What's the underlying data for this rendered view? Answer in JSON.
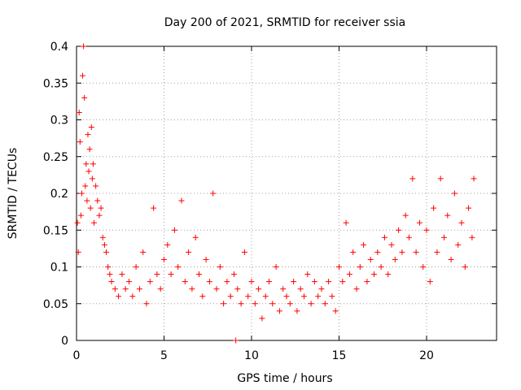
{
  "chart_data": {
    "type": "scatter",
    "title": "Day 200 of 2021, SRMTID for receiver ssia",
    "xlabel": "GPS time / hours",
    "ylabel": "SRMTID / TECUs",
    "xlim": [
      0,
      24
    ],
    "ylim": [
      0,
      0.4
    ],
    "x_ticks": [
      0,
      5,
      10,
      15,
      20
    ],
    "y_ticks": [
      0,
      0.05,
      0.1,
      0.15,
      0.2,
      0.25,
      0.3,
      0.35,
      0.4
    ],
    "y_tick_labels": [
      "0",
      "0.05",
      "0.1",
      "0.15",
      "0.2",
      "0.25",
      "0.3",
      "0.35",
      "0.4"
    ],
    "grid": true,
    "marker": "+",
    "color": "#ff0000",
    "series": [
      {
        "name": "ssia",
        "points": [
          [
            0.05,
            0.16
          ],
          [
            0.1,
            0.12
          ],
          [
            0.15,
            0.31
          ],
          [
            0.2,
            0.27
          ],
          [
            0.25,
            0.17
          ],
          [
            0.3,
            0.2
          ],
          [
            0.35,
            0.36
          ],
          [
            0.4,
            0.4
          ],
          [
            0.45,
            0.33
          ],
          [
            0.5,
            0.21
          ],
          [
            0.55,
            0.24
          ],
          [
            0.6,
            0.19
          ],
          [
            0.65,
            0.28
          ],
          [
            0.7,
            0.23
          ],
          [
            0.75,
            0.26
          ],
          [
            0.8,
            0.18
          ],
          [
            0.85,
            0.29
          ],
          [
            0.9,
            0.22
          ],
          [
            0.95,
            0.24
          ],
          [
            1.0,
            0.16
          ],
          [
            1.1,
            0.21
          ],
          [
            1.2,
            0.19
          ],
          [
            1.3,
            0.17
          ],
          [
            1.4,
            0.18
          ],
          [
            1.5,
            0.14
          ],
          [
            1.6,
            0.13
          ],
          [
            1.7,
            0.12
          ],
          [
            1.8,
            0.1
          ],
          [
            1.9,
            0.09
          ],
          [
            2.0,
            0.08
          ],
          [
            2.2,
            0.07
          ],
          [
            2.4,
            0.06
          ],
          [
            2.6,
            0.09
          ],
          [
            2.8,
            0.07
          ],
          [
            3.0,
            0.08
          ],
          [
            3.2,
            0.06
          ],
          [
            3.4,
            0.1
          ],
          [
            3.6,
            0.07
          ],
          [
            3.8,
            0.12
          ],
          [
            4.0,
            0.05
          ],
          [
            4.2,
            0.08
          ],
          [
            4.4,
            0.18
          ],
          [
            4.6,
            0.09
          ],
          [
            4.8,
            0.07
          ],
          [
            5.0,
            0.11
          ],
          [
            5.2,
            0.13
          ],
          [
            5.4,
            0.09
          ],
          [
            5.6,
            0.15
          ],
          [
            5.8,
            0.1
          ],
          [
            6.0,
            0.19
          ],
          [
            6.2,
            0.08
          ],
          [
            6.4,
            0.12
          ],
          [
            6.6,
            0.07
          ],
          [
            6.8,
            0.14
          ],
          [
            7.0,
            0.09
          ],
          [
            7.2,
            0.06
          ],
          [
            7.4,
            0.11
          ],
          [
            7.6,
            0.08
          ],
          [
            7.8,
            0.2
          ],
          [
            8.0,
            0.07
          ],
          [
            8.2,
            0.1
          ],
          [
            8.4,
            0.05
          ],
          [
            8.6,
            0.08
          ],
          [
            8.8,
            0.06
          ],
          [
            9.0,
            0.09
          ],
          [
            9.1,
            0.0
          ],
          [
            9.2,
            0.07
          ],
          [
            9.4,
            0.05
          ],
          [
            9.6,
            0.12
          ],
          [
            9.8,
            0.06
          ],
          [
            10.0,
            0.08
          ],
          [
            10.2,
            0.05
          ],
          [
            10.4,
            0.07
          ],
          [
            10.6,
            0.03
          ],
          [
            10.8,
            0.06
          ],
          [
            11.0,
            0.08
          ],
          [
            11.2,
            0.05
          ],
          [
            11.4,
            0.1
          ],
          [
            11.6,
            0.04
          ],
          [
            11.8,
            0.07
          ],
          [
            12.0,
            0.06
          ],
          [
            12.2,
            0.05
          ],
          [
            12.4,
            0.08
          ],
          [
            12.6,
            0.04
          ],
          [
            12.8,
            0.07
          ],
          [
            13.0,
            0.06
          ],
          [
            13.2,
            0.09
          ],
          [
            13.4,
            0.05
          ],
          [
            13.6,
            0.08
          ],
          [
            13.8,
            0.06
          ],
          [
            14.0,
            0.07
          ],
          [
            14.2,
            0.05
          ],
          [
            14.4,
            0.08
          ],
          [
            14.6,
            0.06
          ],
          [
            14.8,
            0.04
          ],
          [
            15.0,
            0.1
          ],
          [
            15.2,
            0.08
          ],
          [
            15.4,
            0.16
          ],
          [
            15.6,
            0.09
          ],
          [
            15.8,
            0.12
          ],
          [
            16.0,
            0.07
          ],
          [
            16.2,
            0.1
          ],
          [
            16.4,
            0.13
          ],
          [
            16.6,
            0.08
          ],
          [
            16.8,
            0.11
          ],
          [
            17.0,
            0.09
          ],
          [
            17.2,
            0.12
          ],
          [
            17.4,
            0.1
          ],
          [
            17.6,
            0.14
          ],
          [
            17.8,
            0.09
          ],
          [
            18.0,
            0.13
          ],
          [
            18.2,
            0.11
          ],
          [
            18.4,
            0.15
          ],
          [
            18.6,
            0.12
          ],
          [
            18.8,
            0.17
          ],
          [
            19.0,
            0.14
          ],
          [
            19.2,
            0.22
          ],
          [
            19.4,
            0.12
          ],
          [
            19.6,
            0.16
          ],
          [
            19.8,
            0.1
          ],
          [
            20.0,
            0.15
          ],
          [
            20.2,
            0.08
          ],
          [
            20.4,
            0.18
          ],
          [
            20.6,
            0.12
          ],
          [
            20.8,
            0.22
          ],
          [
            21.0,
            0.14
          ],
          [
            21.2,
            0.17
          ],
          [
            21.4,
            0.11
          ],
          [
            21.6,
            0.2
          ],
          [
            21.8,
            0.13
          ],
          [
            22.0,
            0.16
          ],
          [
            22.2,
            0.1
          ],
          [
            22.4,
            0.18
          ],
          [
            22.6,
            0.14
          ],
          [
            22.7,
            0.22
          ]
        ]
      }
    ]
  }
}
